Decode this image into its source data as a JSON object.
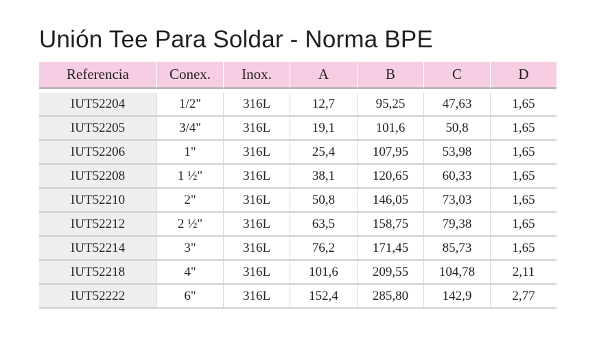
{
  "title": "Unión Tee Para Soldar - Norma BPE",
  "headers": [
    "Referencia",
    "Conex.",
    "Inox.",
    "A",
    "B",
    "C",
    "D"
  ],
  "rows": [
    [
      "IUT52204",
      "1/2\"",
      "316L",
      "12,7",
      "95,25",
      "47,63",
      "1,65"
    ],
    [
      "IUT52205",
      "3/4\"",
      "316L",
      "19,1",
      "101,6",
      "50,8",
      "1,65"
    ],
    [
      "IUT52206",
      "1\"",
      "316L",
      "25,4",
      "107,95",
      "53,98",
      "1,65"
    ],
    [
      "IUT52208",
      "1 ½\"",
      "316L",
      "38,1",
      "120,65",
      "60,33",
      "1,65"
    ],
    [
      "IUT52210",
      "2\"",
      "316L",
      "50,8",
      "146,05",
      "73,03",
      "1,65"
    ],
    [
      "IUT52212",
      "2 ½\"",
      "316L",
      "63,5",
      "158,75",
      "79,38",
      "1,65"
    ],
    [
      "IUT52214",
      "3\"",
      "316L",
      "76,2",
      "171,45",
      "85,73",
      "1,65"
    ],
    [
      "IUT52218",
      "4\"",
      "316L",
      "101,6",
      "209,55",
      "104,78",
      "2,11"
    ],
    [
      "IUT52222",
      "6\"",
      "316L",
      "152,4",
      "285,80",
      "142,9",
      "2,77"
    ]
  ],
  "colors": {
    "header_bg": "#f6cde2",
    "reference_col_bg": "#eeeeee",
    "text": "#231f20"
  }
}
